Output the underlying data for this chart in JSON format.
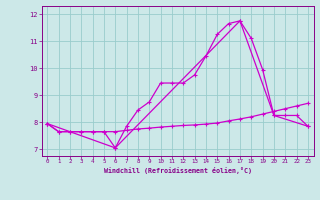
{
  "title": "",
  "xlabel": "Windchill (Refroidissement éolien,°C)",
  "ylabel": "",
  "bg_color": "#cce8e8",
  "line_color": "#cc00cc",
  "xlim": [
    -0.5,
    23.5
  ],
  "ylim": [
    6.75,
    12.3
  ],
  "xticks": [
    0,
    1,
    2,
    3,
    4,
    5,
    6,
    7,
    8,
    9,
    10,
    11,
    12,
    13,
    14,
    15,
    16,
    17,
    18,
    19,
    20,
    21,
    22,
    23
  ],
  "yticks": [
    7,
    8,
    9,
    10,
    11,
    12
  ],
  "grid_color": "#99cccc",
  "line1_x": [
    0,
    1,
    2,
    3,
    4,
    5,
    6,
    7,
    8,
    9,
    10,
    11,
    12,
    13,
    14,
    15,
    16,
    17,
    18,
    19,
    20,
    21,
    22,
    23
  ],
  "line1_y": [
    7.95,
    7.65,
    7.65,
    7.65,
    7.65,
    7.65,
    7.65,
    7.7,
    7.75,
    7.78,
    7.82,
    7.85,
    7.88,
    7.9,
    7.93,
    7.97,
    8.05,
    8.12,
    8.2,
    8.3,
    8.4,
    8.5,
    8.6,
    8.7
  ],
  "line2_x": [
    0,
    1,
    2,
    3,
    4,
    5,
    6,
    7,
    8,
    9,
    10,
    11,
    12,
    13,
    14,
    15,
    16,
    17,
    18,
    19,
    20,
    21,
    22,
    23
  ],
  "line2_y": [
    7.95,
    7.65,
    7.65,
    7.65,
    7.65,
    7.65,
    7.05,
    7.85,
    8.45,
    8.75,
    9.45,
    9.45,
    9.45,
    9.75,
    10.45,
    11.25,
    11.65,
    11.75,
    11.1,
    9.95,
    8.25,
    8.25,
    8.25,
    7.85
  ],
  "line3_x": [
    0,
    6,
    17,
    20,
    23
  ],
  "line3_y": [
    7.95,
    7.05,
    11.75,
    8.25,
    7.85
  ]
}
